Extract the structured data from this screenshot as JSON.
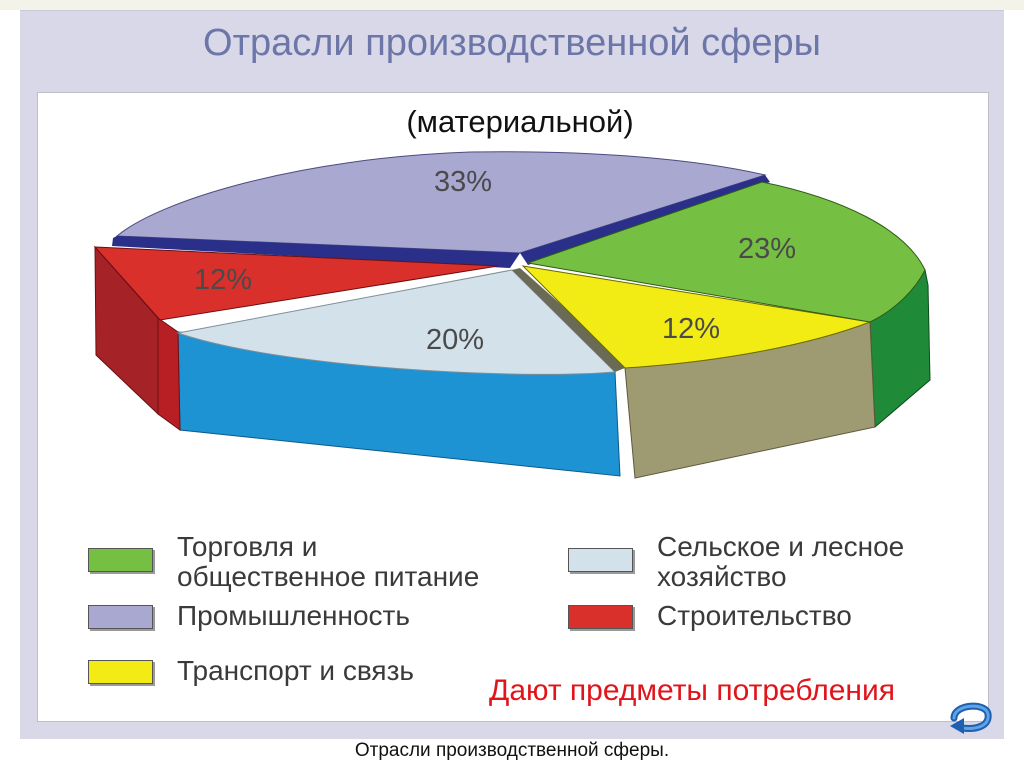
{
  "slide": {
    "title": "Отрасли производственной сферы",
    "subtitle": "(материальной)",
    "note": "Дают предметы потребления",
    "caption": "Отрасли производственной сферы.",
    "back_icon": "return-arrow-icon"
  },
  "chart_data": {
    "type": "pie",
    "three_d": true,
    "slices": [
      {
        "label": "Торговля и общественное питание",
        "value": 23,
        "display": "23%",
        "color": "#75c043"
      },
      {
        "label": "Транспорт и связь",
        "value": 12,
        "display": "12%",
        "color": "#f2ec14"
      },
      {
        "label": "Сельское и лесное хозяйство",
        "value": 20,
        "display": "20%",
        "color": "#d3e1ea"
      },
      {
        "label": "Строительство",
        "value": 12,
        "display": "12%",
        "color": "#d9302c"
      },
      {
        "label": "Промышленность",
        "value": 33,
        "display": "33%",
        "color": "#a9a8d0"
      }
    ],
    "legend": [
      {
        "line1": "Торговля и",
        "line2": "общественное питание",
        "color": "#75c043"
      },
      {
        "line1": "Промышленность",
        "line2": "",
        "color": "#a9a8d0"
      },
      {
        "line1": "Транспорт и связь",
        "line2": "",
        "color": "#f2ec14"
      },
      {
        "line1": "Сельское и лесное",
        "line2": "хозяйство",
        "color": "#d3e1ea"
      },
      {
        "line1": "Строительство",
        "line2": "",
        "color": "#d9302c"
      }
    ],
    "legend_placement": "bottom"
  }
}
